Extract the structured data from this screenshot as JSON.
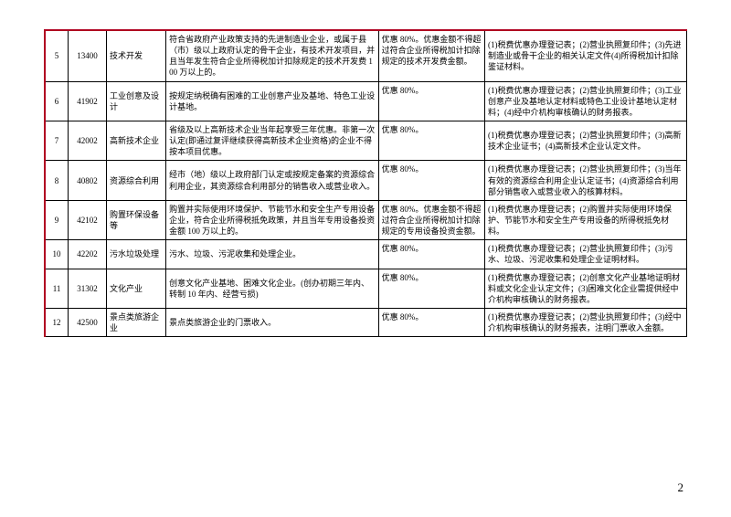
{
  "page_number": "2",
  "colors": {
    "accent": "#b00020",
    "text": "#000000",
    "bg": "#ffffff"
  },
  "rows": [
    {
      "idx": "5",
      "code": "13400",
      "name": "技术开发",
      "desc": "符合省政府产业政策支持的先进制造业企业，或属于县（市）级以上政府认定的骨干企业，有技术开发项目，并且当年发生符合企业所得税加计扣除规定的技术开发费 100 万以上的。",
      "pref": "优惠 80%。优惠金额不得超过符合企业所得税加计扣除规定的技术开发费金额。",
      "req": "(1)税费优惠办理登记表；(2)营业执照复印件；(3)先进制造业或骨干企业的相关认定文件(4)所得税加计扣除鉴证材料。"
    },
    {
      "idx": "6",
      "code": "41902",
      "name": "工业创意及设计",
      "desc": "按规定纳税确有困难的工业创意产业及基地、特色工业设计基地。",
      "pref": "优惠 80%。",
      "req": "(1)税费优惠办理登记表；(2)营业执照复印件；(3)工业创意产业及基地认定材料或特色工业设计基地认定材料；(4)经中介机构审核确认的财务报表。"
    },
    {
      "idx": "7",
      "code": "42002",
      "name": "高新技术企业",
      "desc": "省级及以上高新技术企业当年起享受三年优惠。非第一次认定(即通过复评继续获得高新技术企业资格)的企业不得按本项目优惠。",
      "pref": "优惠 80%。",
      "req": "(1)税费优惠办理登记表；(2)营业执照复印件；(3)高新技术企业证书；(4)高新技术企业认定文件。"
    },
    {
      "idx": "8",
      "code": "40802",
      "name": "资源综合利用",
      "desc": "经市（地）级以上政府部门认定或按规定备案的资源综合利用企业，其资源综合利用部分的销售收入或营业收入。",
      "pref": "优惠 80%。",
      "req": "(1)税费优惠办理登记表；(2)营业执照复印件；(3)当年有效的资源综合利用企业认定证书；(4)资源综合利用部分销售收入或营业收入的核算材料。"
    },
    {
      "idx": "9",
      "code": "42102",
      "name": "购置环保设备等",
      "desc": "购置并实际使用环境保护、节能节水和安全生产专用设备企业，符合企业所得税抵免政策，并且当年专用设备投资金额 100 万以上的。",
      "pref": "优惠 80%。优惠金额不得超过符合企业所得税加计扣除规定的专用设备投资金额。",
      "req": "(1)税费优惠办理登记表；(2)购置并实际使用环境保护、节能节水和安全生产专用设备的所得税抵免材料。"
    },
    {
      "idx": "10",
      "code": "42202",
      "name": "污水垃圾处理",
      "desc": "污水、垃圾、污泥收集和处理企业。",
      "pref": "优惠 80%。",
      "req": "(1)税费优惠办理登记表；(2)营业执照复印件；(3)污水、垃圾、污泥收集和处理企业证明材料。"
    },
    {
      "idx": "11",
      "code": "31302",
      "name": "文化产业",
      "desc": "创意文化产业基地、困难文化企业。(创办初期三年内、转制 10 年内、经营亏损)",
      "pref": "优惠 80%。",
      "req": "(1)税费优惠办理登记表；(2)创意文化产业基地证明材料或文化企业认定文件；(3)困难文化企业需提供经中介机构审核确认的财务报表。"
    },
    {
      "idx": "12",
      "code": "42500",
      "name": "景点类旅游企业",
      "desc": "景点类旅游企业的门票收入。",
      "pref": "优惠 80%。",
      "req": "(1)税费优惠办理登记表；(2)营业执照复印件；(3)经中介机构审核确认的财务报表，注明门票收入金额。"
    }
  ]
}
